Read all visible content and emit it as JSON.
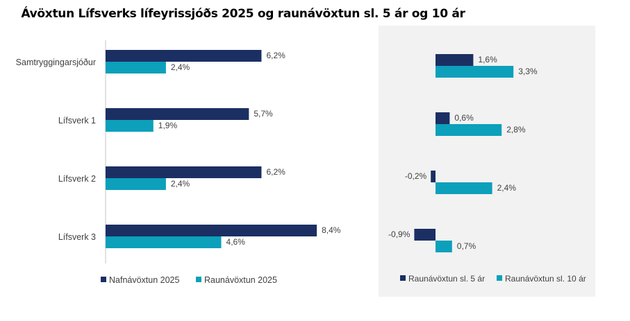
{
  "title": "Ávöxtun Lífsverks lífeyrissjóðs 2025 og raunávöxtun sl. 5 ár og 10 ár",
  "colors": {
    "dark": "#1b2f63",
    "teal": "#0ca0bb",
    "panel": "#f2f2f2"
  },
  "chart_data": [
    {
      "type": "bar",
      "orientation": "horizontal",
      "categories": [
        "Samtryggingarsjóður",
        "Lífsverk 1",
        "Lífsverk 2",
        "Lífsverk 3"
      ],
      "series": [
        {
          "name": "Nafnávöxtun 2025",
          "values": [
            6.2,
            5.7,
            6.2,
            8.4
          ],
          "labels": [
            "6,2%",
            "5,7%",
            "6,2%",
            "8,4%"
          ]
        },
        {
          "name": "Raunávöxtun 2025",
          "values": [
            2.4,
            1.9,
            2.4,
            4.6
          ],
          "labels": [
            "2,4%",
            "1,9%",
            "2,4%",
            "4,6%"
          ]
        }
      ],
      "unit": "%",
      "legend": "bottom",
      "grid": false
    },
    {
      "type": "bar",
      "orientation": "horizontal",
      "categories": [
        "Samtryggingarsjóður",
        "Lífsverk 1",
        "Lífsverk 2",
        "Lífsverk 3"
      ],
      "series": [
        {
          "name": "Raunávöxtun sl. 5 ár",
          "values": [
            1.6,
            0.6,
            -0.2,
            -0.9
          ],
          "labels": [
            "1,6%",
            "0,6%",
            "-0,2%",
            "-0,9%"
          ]
        },
        {
          "name": "Raunávöxtun sl. 10 ár",
          "values": [
            3.3,
            2.8,
            2.4,
            0.7
          ],
          "labels": [
            "3,3%",
            "2,8%",
            "2,4%",
            "0,7%"
          ]
        }
      ],
      "unit": "%",
      "legend": "bottom",
      "grid": false
    }
  ]
}
